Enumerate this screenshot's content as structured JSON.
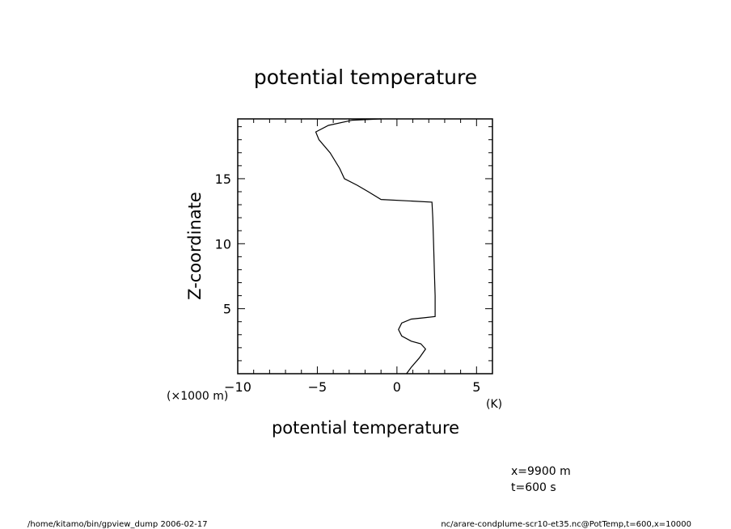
{
  "chart_data": {
    "type": "line",
    "title": "potential temperature",
    "xlabel": "potential temperature",
    "ylabel": "Z-coordinate",
    "x_unit": "(K)",
    "y_unit": "(×1000 m)",
    "xlim": [
      -10,
      6
    ],
    "ylim": [
      0,
      19.6
    ],
    "x_ticks": [
      -10,
      -5,
      0,
      5
    ],
    "x_tick_labels": [
      "−10",
      "−5",
      "0",
      "5"
    ],
    "y_ticks": [
      5,
      10,
      15
    ],
    "y_tick_labels": [
      "5",
      "10",
      "15"
    ],
    "grid": false,
    "series": [
      {
        "x": [
          0.6,
          0.9,
          1.4,
          1.8,
          1.5,
          0.9,
          0.3,
          0.1,
          0.3,
          0.9,
          1.7,
          2.4,
          2.4,
          2.35,
          2.3,
          2.25,
          2.2,
          -1.0,
          -1.8,
          -2.5,
          -3.3,
          -3.6,
          -4.2,
          -4.9,
          -5.1,
          -4.3,
          -2.8,
          -1.0
        ],
        "y": [
          0.0,
          0.5,
          1.2,
          1.9,
          2.3,
          2.5,
          2.9,
          3.4,
          3.9,
          4.2,
          4.3,
          4.4,
          6.0,
          8.0,
          10.0,
          12.0,
          13.2,
          13.4,
          14.0,
          14.5,
          15.0,
          15.8,
          17.0,
          18.0,
          18.6,
          19.1,
          19.5,
          19.6
        ]
      }
    ]
  },
  "annotations": {
    "coord_x": "x=9900  m",
    "coord_t": "t=600  s"
  },
  "footer": {
    "left": "/home/kitamo/bin/gpview_dump  2006-02-17",
    "right": "nc/arare-condplume-scr10-et35.nc@PotTemp,t=600,x=10000"
  }
}
